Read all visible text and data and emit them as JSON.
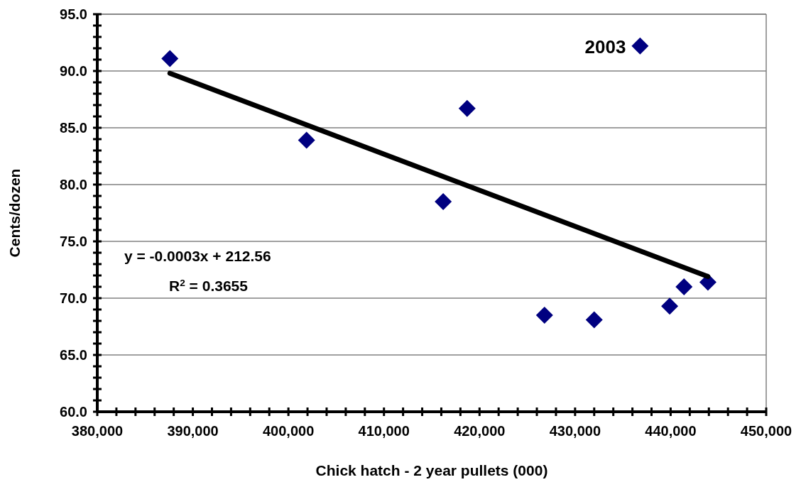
{
  "chart_data": {
    "type": "scatter",
    "xlabel": "Chick hatch - 2 year pullets (000)",
    "ylabel": "Cents/dozen",
    "xlim": [
      380000,
      450000
    ],
    "ylim": [
      60,
      95
    ],
    "xticks": [
      {
        "value": 380000,
        "label": "380,000"
      },
      {
        "value": 382000,
        "label": null
      },
      {
        "value": 384000,
        "label": null
      },
      {
        "value": 386000,
        "label": null
      },
      {
        "value": 388000,
        "label": null
      },
      {
        "value": 390000,
        "label": "390,000"
      },
      {
        "value": 392000,
        "label": null
      },
      {
        "value": 394000,
        "label": null
      },
      {
        "value": 396000,
        "label": null
      },
      {
        "value": 398000,
        "label": null
      },
      {
        "value": 400000,
        "label": "400,000"
      },
      {
        "value": 402000,
        "label": null
      },
      {
        "value": 404000,
        "label": null
      },
      {
        "value": 406000,
        "label": null
      },
      {
        "value": 408000,
        "label": null
      },
      {
        "value": 410000,
        "label": "410,000"
      },
      {
        "value": 412000,
        "label": null
      },
      {
        "value": 414000,
        "label": null
      },
      {
        "value": 416000,
        "label": null
      },
      {
        "value": 418000,
        "label": null
      },
      {
        "value": 420000,
        "label": "420,000"
      },
      {
        "value": 422000,
        "label": null
      },
      {
        "value": 424000,
        "label": null
      },
      {
        "value": 426000,
        "label": null
      },
      {
        "value": 428000,
        "label": null
      },
      {
        "value": 430000,
        "label": "430,000"
      },
      {
        "value": 432000,
        "label": null
      },
      {
        "value": 434000,
        "label": null
      },
      {
        "value": 436000,
        "label": null
      },
      {
        "value": 438000,
        "label": null
      },
      {
        "value": 440000,
        "label": "440,000"
      },
      {
        "value": 442000,
        "label": null
      },
      {
        "value": 444000,
        "label": null
      },
      {
        "value": 446000,
        "label": null
      },
      {
        "value": 448000,
        "label": null
      },
      {
        "value": 450000,
        "label": "450,000"
      }
    ],
    "yticks": [
      {
        "value": 60,
        "label": "60.0"
      },
      {
        "value": 61,
        "label": null
      },
      {
        "value": 62,
        "label": null
      },
      {
        "value": 63,
        "label": null
      },
      {
        "value": 64,
        "label": null
      },
      {
        "value": 65,
        "label": "65.0"
      },
      {
        "value": 66,
        "label": null
      },
      {
        "value": 67,
        "label": null
      },
      {
        "value": 68,
        "label": null
      },
      {
        "value": 69,
        "label": null
      },
      {
        "value": 70,
        "label": "70.0"
      },
      {
        "value": 71,
        "label": null
      },
      {
        "value": 72,
        "label": null
      },
      {
        "value": 73,
        "label": null
      },
      {
        "value": 74,
        "label": null
      },
      {
        "value": 75,
        "label": "75.0"
      },
      {
        "value": 76,
        "label": null
      },
      {
        "value": 77,
        "label": null
      },
      {
        "value": 78,
        "label": null
      },
      {
        "value": 79,
        "label": null
      },
      {
        "value": 80,
        "label": "80.0"
      },
      {
        "value": 81,
        "label": null
      },
      {
        "value": 82,
        "label": null
      },
      {
        "value": 83,
        "label": null
      },
      {
        "value": 84,
        "label": null
      },
      {
        "value": 85,
        "label": "85.0"
      },
      {
        "value": 86,
        "label": null
      },
      {
        "value": 87,
        "label": null
      },
      {
        "value": 88,
        "label": null
      },
      {
        "value": 89,
        "label": null
      },
      {
        "value": 90,
        "label": "90.0"
      },
      {
        "value": 91,
        "label": null
      },
      {
        "value": 92,
        "label": null
      },
      {
        "value": 93,
        "label": null
      },
      {
        "value": 94,
        "label": null
      },
      {
        "value": 95,
        "label": "95.0"
      }
    ],
    "grid": "y",
    "series": [
      {
        "color": "#000080",
        "marker": "diamond",
        "x": [
          387600,
          401900,
          416200,
          418700,
          426800,
          432000,
          436800,
          439900,
          441400,
          443900
        ],
        "values": [
          91.1,
          83.9,
          78.5,
          86.7,
          68.5,
          68.1,
          92.2,
          69.3,
          71.0,
          71.4
        ]
      },
      {
        "type": "line",
        "color": "#000000",
        "marker": "none",
        "line_style": "solid",
        "x": [
          387600,
          443900
        ],
        "values": [
          89.8,
          71.9
        ]
      }
    ],
    "annotations": [
      {
        "text": "2003",
        "x": 436800,
        "y": 92.2
      },
      "y = -0.0003x + 212.56",
      "R$^{2}$ = 0.3655"
    ]
  }
}
